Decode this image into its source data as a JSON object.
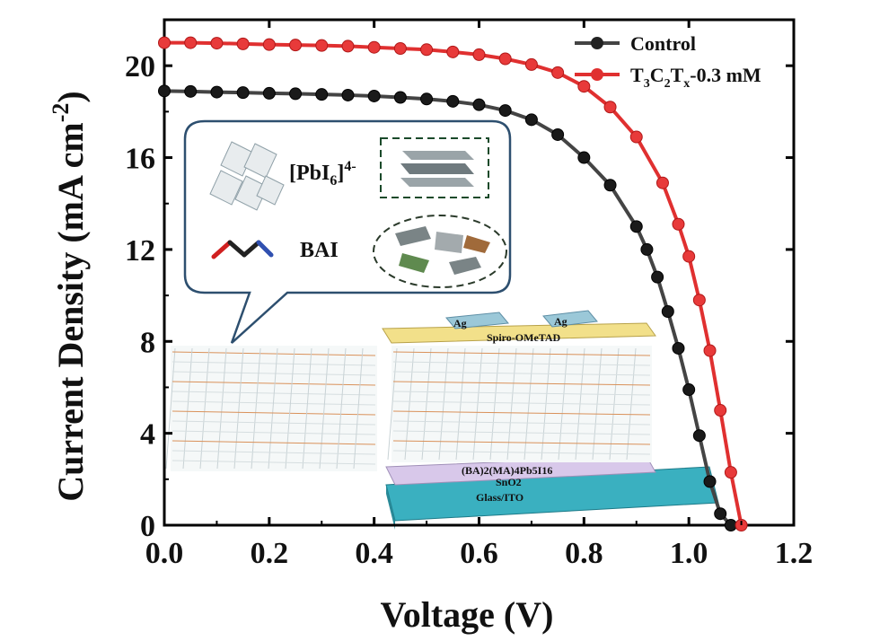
{
  "chart_data": {
    "type": "line",
    "xlabel": "Voltage (V)",
    "ylabel": "Current Density (mA cm^-2)",
    "xlim": [
      0.0,
      1.2
    ],
    "ylim": [
      0,
      22
    ],
    "x_ticks": [
      "0.0",
      "0.2",
      "0.4",
      "0.6",
      "0.8",
      "1.0",
      "1.2"
    ],
    "y_ticks": [
      "0",
      "4",
      "8",
      "12",
      "16",
      "20"
    ],
    "legend_position": "top-right",
    "series": [
      {
        "name": "Control",
        "color": "#444444",
        "marker": "circle",
        "x": [
          0.0,
          0.05,
          0.1,
          0.15,
          0.2,
          0.25,
          0.3,
          0.35,
          0.4,
          0.45,
          0.5,
          0.55,
          0.6,
          0.65,
          0.7,
          0.75,
          0.8,
          0.85,
          0.9,
          0.92,
          0.94,
          0.96,
          0.98,
          1.0,
          1.02,
          1.04,
          1.06,
          1.08
        ],
        "y": [
          18.9,
          18.88,
          18.85,
          18.83,
          18.8,
          18.78,
          18.75,
          18.72,
          18.68,
          18.62,
          18.55,
          18.45,
          18.3,
          18.05,
          17.65,
          17.0,
          16.0,
          14.8,
          13.0,
          12.0,
          10.8,
          9.3,
          7.7,
          5.9,
          3.9,
          1.9,
          0.5,
          0.0
        ]
      },
      {
        "name": "T3C2Tx-0.3 mM",
        "color": "#e03030",
        "marker": "circle",
        "x": [
          0.0,
          0.05,
          0.1,
          0.15,
          0.2,
          0.25,
          0.3,
          0.35,
          0.4,
          0.45,
          0.5,
          0.55,
          0.6,
          0.65,
          0.7,
          0.75,
          0.8,
          0.85,
          0.9,
          0.95,
          0.98,
          1.0,
          1.02,
          1.04,
          1.06,
          1.08,
          1.1
        ],
        "y": [
          21.0,
          21.0,
          20.98,
          20.95,
          20.92,
          20.9,
          20.88,
          20.85,
          20.8,
          20.75,
          20.7,
          20.6,
          20.48,
          20.3,
          20.05,
          19.7,
          19.1,
          18.2,
          16.9,
          14.9,
          13.1,
          11.7,
          9.8,
          7.6,
          5.0,
          2.3,
          0.0
        ]
      }
    ],
    "legend": {
      "entries": [
        {
          "label": "Control",
          "color": "#444444"
        },
        {
          "label": "T3C2Tx-0.3 mM",
          "color": "#e03030"
        }
      ]
    },
    "inset": {
      "labels": [
        "[PbI6]4-",
        "BAI"
      ],
      "device_layers": [
        "Ag",
        "Ag",
        "Spiro-OMeTAD",
        "(BA)2(MA)4Pb5I16",
        "SnO2",
        "Glass/ITO"
      ]
    }
  }
}
